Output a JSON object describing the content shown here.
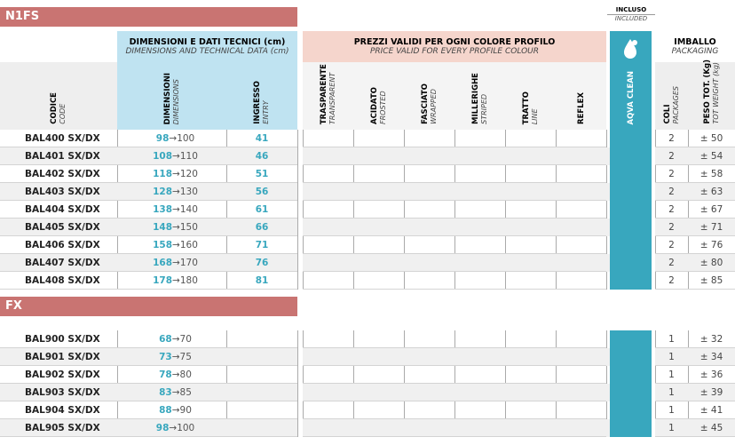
{
  "included": {
    "it": "INCLUSO",
    "en": "INCLUDED"
  },
  "groups": {
    "dimensions": {
      "it": "DIMENSIONI E DATI TECNICI (cm)",
      "en": "DIMENSIONS AND TECHNICAL DATA (cm)"
    },
    "prices": {
      "it": "PREZZI VALIDI PER OGNI COLORE PROFILO",
      "en": "PRICE VALID FOR EVERY PROFILE COLOUR"
    },
    "packaging": {
      "it": "IMBALLO",
      "en": "PACKAGING"
    }
  },
  "columns": {
    "code": {
      "it": "CODICE",
      "en": "CODE"
    },
    "dims": {
      "it": "DIMENSIONI",
      "en": "DIMENSIONS"
    },
    "entry": {
      "it": "INGRESSO",
      "en": "ENTRY"
    },
    "finishes": [
      {
        "it": "TRASPARENTE",
        "en": "TRANSPARENT"
      },
      {
        "it": "ACIDATO",
        "en": "FROSTED"
      },
      {
        "it": "FASCIATO",
        "en": "WRAPPED"
      },
      {
        "it": "MILLERIGHE",
        "en": "STRIPED"
      },
      {
        "it": "TRATTO",
        "en": "LINE"
      },
      {
        "it": "REFLEX"
      }
    ],
    "aqva": "AQVA CLEAN",
    "packages": {
      "it": "COLI",
      "en": "PACKAGES"
    },
    "weight": {
      "it": "PESO TOT. (Kg)",
      "en": "TOT WEIGHT (kg)"
    }
  },
  "sections": [
    {
      "title": "N1FS",
      "rows": [
        {
          "code": "BAL400 SX/DX",
          "dim_from": "98",
          "dim_to": "→100",
          "entry": "41",
          "packages": "2",
          "weight": "± 50"
        },
        {
          "code": "BAL401 SX/DX",
          "dim_from": "108",
          "dim_to": "→110",
          "entry": "46",
          "packages": "2",
          "weight": "± 54"
        },
        {
          "code": "BAL402 SX/DX",
          "dim_from": "118",
          "dim_to": "→120",
          "entry": "51",
          "packages": "2",
          "weight": "± 58"
        },
        {
          "code": "BAL403 SX/DX",
          "dim_from": "128",
          "dim_to": "→130",
          "entry": "56",
          "packages": "2",
          "weight": "± 63"
        },
        {
          "code": "BAL404 SX/DX",
          "dim_from": "138",
          "dim_to": "→140",
          "entry": "61",
          "packages": "2",
          "weight": "± 67"
        },
        {
          "code": "BAL405 SX/DX",
          "dim_from": "148",
          "dim_to": "→150",
          "entry": "66",
          "packages": "2",
          "weight": "± 71"
        },
        {
          "code": "BAL406 SX/DX",
          "dim_from": "158",
          "dim_to": "→160",
          "entry": "71",
          "packages": "2",
          "weight": "± 76"
        },
        {
          "code": "BAL407 SX/DX",
          "dim_from": "168",
          "dim_to": "→170",
          "entry": "76",
          "packages": "2",
          "weight": "± 80"
        },
        {
          "code": "BAL408 SX/DX",
          "dim_from": "178",
          "dim_to": "→180",
          "entry": "81",
          "packages": "2",
          "weight": "± 85"
        }
      ]
    },
    {
      "title": "FX",
      "rows": [
        {
          "code": "BAL900 SX/DX",
          "dim_from": "68",
          "dim_to": "→70",
          "packages": "1",
          "weight": "± 32"
        },
        {
          "code": "BAL901 SX/DX",
          "dim_from": "73",
          "dim_to": "→75",
          "packages": "1",
          "weight": "± 34"
        },
        {
          "code": "BAL902 SX/DX",
          "dim_from": "78",
          "dim_to": "→80",
          "packages": "1",
          "weight": "± 36"
        },
        {
          "code": "BAL903 SX/DX",
          "dim_from": "83",
          "dim_to": "→85",
          "packages": "1",
          "weight": "± 39"
        },
        {
          "code": "BAL904 SX/DX",
          "dim_from": "88",
          "dim_to": "→90",
          "packages": "1",
          "weight": "± 41"
        },
        {
          "code": "BAL905 SX/DX",
          "dim_from": "98",
          "dim_to": "→100",
          "packages": "1",
          "weight": "± 45"
        }
      ]
    }
  ]
}
